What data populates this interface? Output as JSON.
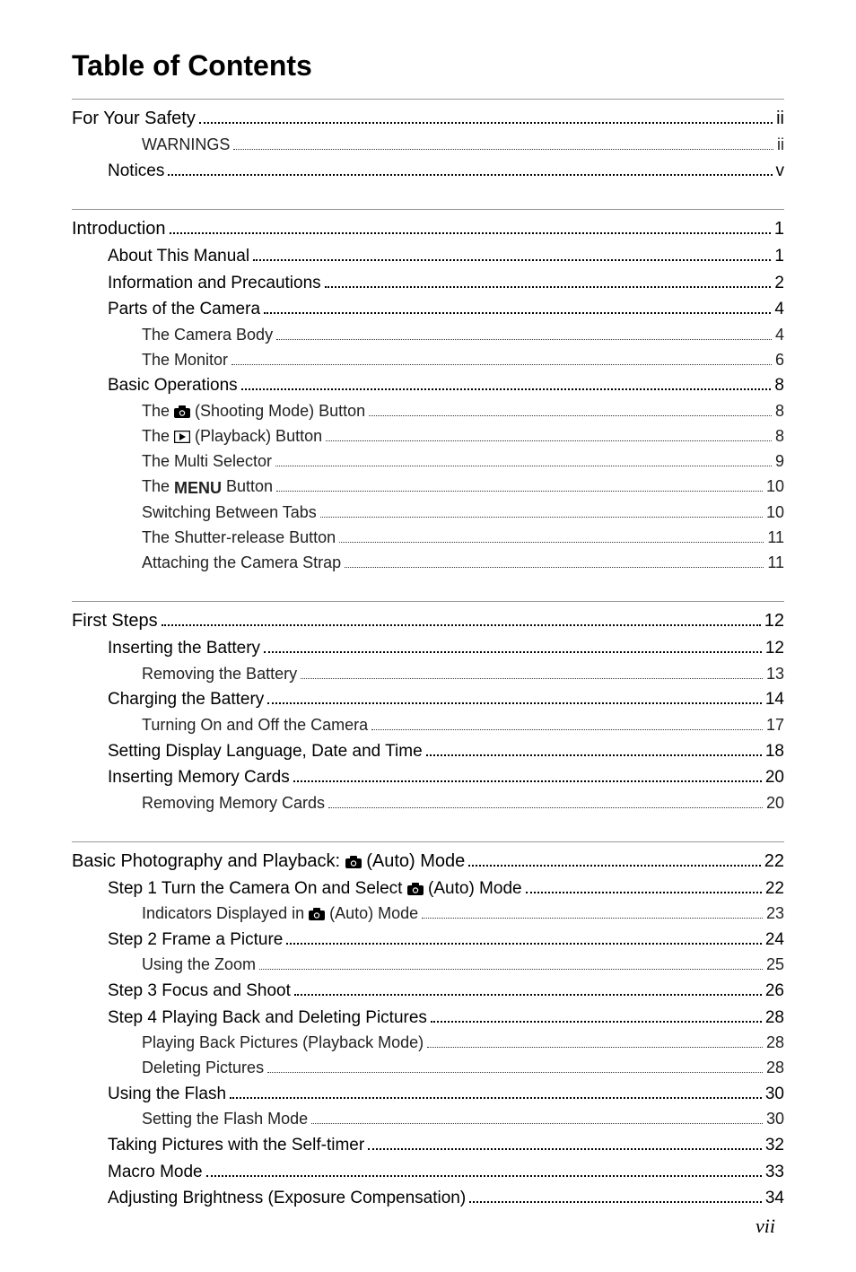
{
  "title": "Table of Contents",
  "page_number": "vii",
  "sections": [
    {
      "entries": [
        {
          "level": 0,
          "label": "For Your Safety",
          "page": "ii"
        },
        {
          "level": 2,
          "label": "WARNINGS",
          "page": "ii"
        },
        {
          "level": 1,
          "label": "Notices",
          "page": "v"
        }
      ]
    },
    {
      "entries": [
        {
          "level": 0,
          "label": "Introduction",
          "page": "1"
        },
        {
          "level": 1,
          "label": "About This Manual",
          "page": "1"
        },
        {
          "level": 1,
          "label": "Information and Precautions",
          "page": "2"
        },
        {
          "level": 1,
          "label": "Parts of the Camera",
          "page": "4"
        },
        {
          "level": 2,
          "label": "The Camera Body",
          "page": "4"
        },
        {
          "level": 2,
          "label": "The Monitor",
          "page": "6"
        },
        {
          "level": 1,
          "label": "Basic Operations",
          "page": "8"
        },
        {
          "level": 2,
          "label_pre": "The ",
          "icon": "camera",
          "label_post": " (Shooting Mode) Button",
          "page": "8"
        },
        {
          "level": 2,
          "label_pre": "The ",
          "icon": "playback",
          "label_post": " (Playback) Button",
          "page": "8"
        },
        {
          "level": 2,
          "label": "The Multi Selector",
          "page": "9"
        },
        {
          "level": 2,
          "label_pre": "The ",
          "icon": "menu",
          "label_post": " Button",
          "page": "10"
        },
        {
          "level": 2,
          "label": "Switching Between Tabs",
          "page": "10"
        },
        {
          "level": 2,
          "label": "The Shutter-release Button",
          "page": "11"
        },
        {
          "level": 2,
          "label": "Attaching the Camera Strap",
          "page": "11"
        }
      ]
    },
    {
      "entries": [
        {
          "level": 0,
          "label": "First Steps",
          "page": "12"
        },
        {
          "level": 1,
          "label": "Inserting the Battery",
          "page": "12"
        },
        {
          "level": 2,
          "label": "Removing the Battery",
          "page": "13"
        },
        {
          "level": 1,
          "label": "Charging the Battery",
          "page": "14"
        },
        {
          "level": 2,
          "label": "Turning On and Off the Camera",
          "page": "17"
        },
        {
          "level": 1,
          "label": "Setting Display Language, Date and Time",
          "page": "18"
        },
        {
          "level": 1,
          "label": "Inserting Memory Cards",
          "page": "20"
        },
        {
          "level": 2,
          "label": "Removing Memory Cards",
          "page": "20"
        }
      ]
    },
    {
      "entries": [
        {
          "level": 0,
          "label_pre": "Basic Photography and Playback: ",
          "icon": "camera",
          "label_post": " (Auto) Mode",
          "page": "22"
        },
        {
          "level": 1,
          "label_pre": "Step 1 Turn the Camera On and Select ",
          "icon": "camera",
          "label_post": " (Auto) Mode",
          "page": "22"
        },
        {
          "level": 2,
          "label_pre": "Indicators Displayed in ",
          "icon": "camera",
          "label_post": " (Auto) Mode",
          "page": "23"
        },
        {
          "level": 1,
          "label": "Step 2 Frame a Picture",
          "page": "24"
        },
        {
          "level": 2,
          "label": "Using the Zoom",
          "page": "25"
        },
        {
          "level": 1,
          "label": "Step 3 Focus and Shoot",
          "page": "26"
        },
        {
          "level": 1,
          "label": "Step 4 Playing Back and Deleting Pictures",
          "page": "28"
        },
        {
          "level": 2,
          "label": "Playing Back Pictures (Playback Mode)",
          "page": "28"
        },
        {
          "level": 2,
          "label": "Deleting Pictures",
          "page": "28"
        },
        {
          "level": 1,
          "label": "Using the Flash",
          "page": "30"
        },
        {
          "level": 2,
          "label": "Setting the Flash Mode",
          "page": "30"
        },
        {
          "level": 1,
          "label": "Taking Pictures with the Self-timer",
          "page": "32"
        },
        {
          "level": 1,
          "label": "Macro Mode",
          "page": "33"
        },
        {
          "level": 1,
          "label": "Adjusting Brightness (Exposure Compensation)",
          "page": "34"
        }
      ]
    }
  ],
  "icons": {
    "camera": "camera-icon",
    "playback": "playback-icon",
    "menu": "MENU"
  },
  "colors": {
    "page_bg": "#ffffff",
    "body_bg": "#808080",
    "text": "#000000",
    "rule": "#999999"
  }
}
